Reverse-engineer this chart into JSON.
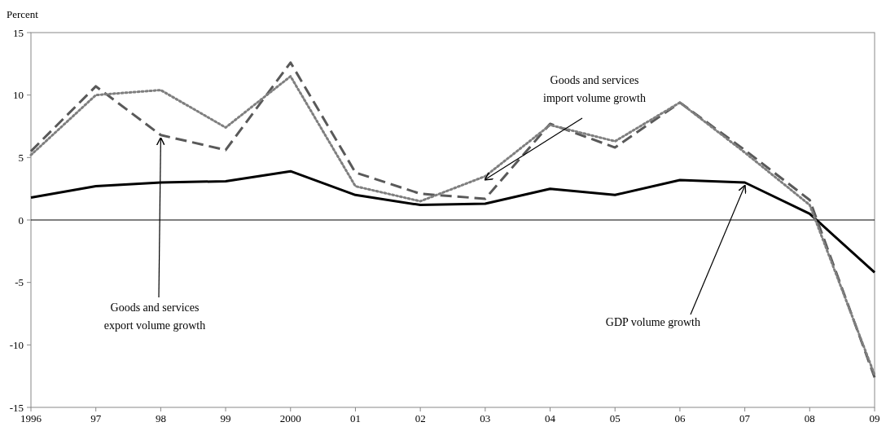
{
  "chart_data": {
    "type": "line",
    "ylabel": "Percent",
    "categories": [
      "1996",
      "97",
      "98",
      "99",
      "2000",
      "01",
      "02",
      "03",
      "04",
      "05",
      "06",
      "07",
      "08",
      "09"
    ],
    "series": [
      {
        "color": "#000000",
        "line_style": "solid",
        "values": [
          1.8,
          2.7,
          3.0,
          3.1,
          3.9,
          2.0,
          1.2,
          1.3,
          2.5,
          2.0,
          3.2,
          3.0,
          0.5,
          -4.2
        ]
      },
      {
        "color": "#595959",
        "line_style": "dashed",
        "values": [
          5.5,
          10.7,
          6.8,
          5.6,
          12.6,
          3.8,
          2.1,
          1.7,
          7.7,
          5.8,
          9.4,
          5.6,
          1.6,
          -12.6
        ]
      },
      {
        "color": "#7f7f7f",
        "line_style": "dotted",
        "values": [
          5.2,
          10.0,
          10.4,
          7.4,
          11.5,
          2.7,
          1.5,
          3.5,
          7.6,
          6.3,
          9.4,
          5.4,
          1.2,
          -12.4
        ]
      }
    ],
    "ylim": [
      -15,
      15
    ],
    "yticks": [
      -15,
      -10,
      -5,
      0,
      5,
      10,
      15
    ],
    "grid": false,
    "marker": "none",
    "ref_lines": [
      {
        "axis": "y",
        "value": 0,
        "color": "#000000"
      }
    ],
    "annotations": [
      {
        "text": "Goods and services\nexport volume growth",
        "x": "98",
        "y": 6.8
      },
      {
        "text": "Goods and services\nimport volume growth",
        "x": "03",
        "y": 3.5
      },
      {
        "text": "GDP volume growth",
        "x": "07",
        "y": 3.0
      }
    ]
  }
}
